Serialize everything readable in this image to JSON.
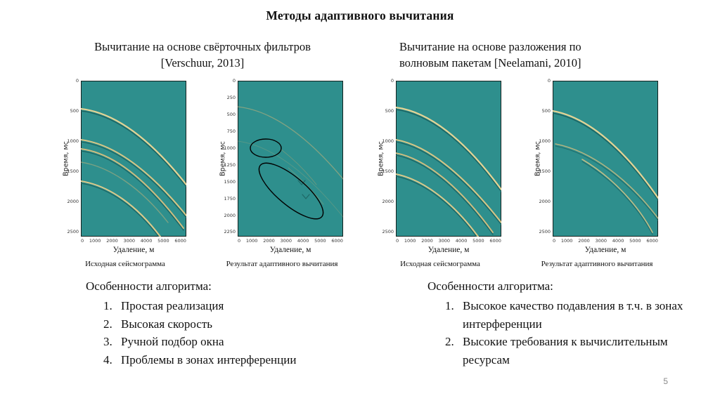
{
  "slide": {
    "title": "Методы адаптивного вычитания",
    "page_number": "5"
  },
  "sections": {
    "left": {
      "heading_line1": "Вычитание на основе свёрточных фильтров",
      "heading_line2": "[Verschuur, 2013]",
      "features_title": "Особенности алгоритма:",
      "features": [
        "Простая реализация",
        "Высокая скорость",
        "Ручной подбор окна",
        "Проблемы в зонах интерференции"
      ]
    },
    "right": {
      "heading_line1": "Вычитание на основе разложения по",
      "heading_line2": "волновым пакетам [Neelamani, 2010]",
      "features_title": "Особенности алгоритма:",
      "features": [
        "Высокое качество подавления в т.ч. в зонах интерференции",
        "Высокие требования к вычислительным ресурсам"
      ]
    }
  },
  "plots": [
    {
      "ylabel": "Время, мс",
      "xlabel": "Удаление, м",
      "caption": "Исходная сейсмограмма",
      "yticks": [
        "0",
        "500",
        "1000",
        "1500",
        "2000",
        "2500"
      ],
      "xticks": [
        "0",
        "1000",
        "2000",
        "3000",
        "4000",
        "5000",
        "6000"
      ],
      "events_t0_ms": [
        450,
        950,
        1090,
        1300,
        1600
      ]
    },
    {
      "ylabel": "Время, мс",
      "xlabel": "Удаление, м",
      "caption": "Результат адаптивного вычитания",
      "yticks": [
        "0",
        "250",
        "500",
        "750",
        "1000",
        "1250",
        "1500",
        "1750",
        "2000",
        "2250"
      ],
      "xticks": [
        "0",
        "1000",
        "2000",
        "3000",
        "4000",
        "5000",
        "6000"
      ],
      "events_t0_ms": [
        420
      ],
      "annotations": [
        "ellipse-small",
        "ellipse-large"
      ]
    },
    {
      "ylabel": "Время, мс",
      "xlabel": "Удаление, м",
      "caption": "Исходная сейсмограмма",
      "yticks": [
        "0",
        "500",
        "1000",
        "1500",
        "2000",
        "2500"
      ],
      "xticks": [
        "0",
        "1000",
        "2000",
        "3000",
        "4000",
        "5000",
        "6000"
      ],
      "events_t0_ms": [
        430,
        950,
        1160,
        1500
      ]
    },
    {
      "ylabel": "Время, мс",
      "xlabel": "Удаление, м",
      "caption": "Результат адаптивного вычитания",
      "yticks": [
        "0",
        "500",
        "1000",
        "1500",
        "2000",
        "2500"
      ],
      "xticks": [
        "0",
        "1000",
        "2000",
        "3000",
        "4000",
        "5000",
        "6000"
      ],
      "events_t0_ms": [
        480,
        1010,
        1260
      ]
    }
  ],
  "colors": {
    "plot_background": "#2e8f8d",
    "event_bright": "#e4d394",
    "event_tan": "#d2bd7e",
    "event_shadow": "#1d6361",
    "annotation": "#000000"
  }
}
